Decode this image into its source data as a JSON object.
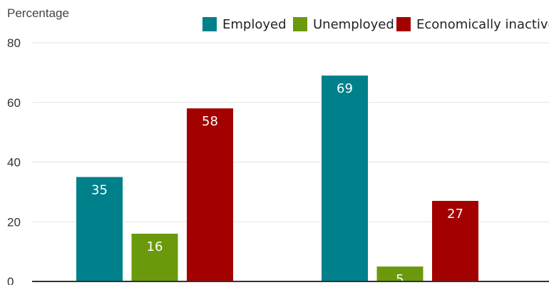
{
  "chart_data": {
    "type": "bar",
    "ylabel": "Percentage",
    "xlabel": "",
    "title": "",
    "categories": [
      "",
      ""
    ],
    "ylim": [
      0,
      80
    ],
    "yticks": [
      0,
      20,
      40,
      60,
      80
    ],
    "grid": true,
    "legend_position": "top-right",
    "series": [
      {
        "name": "Employed",
        "color": "#00808a",
        "values": [
          35,
          69
        ]
      },
      {
        "name": "Unemployed",
        "color": "#6a9a0b",
        "values": [
          16,
          5
        ]
      },
      {
        "name": "Economically inactive",
        "color": "#a30000",
        "values": [
          58,
          27
        ]
      }
    ]
  }
}
